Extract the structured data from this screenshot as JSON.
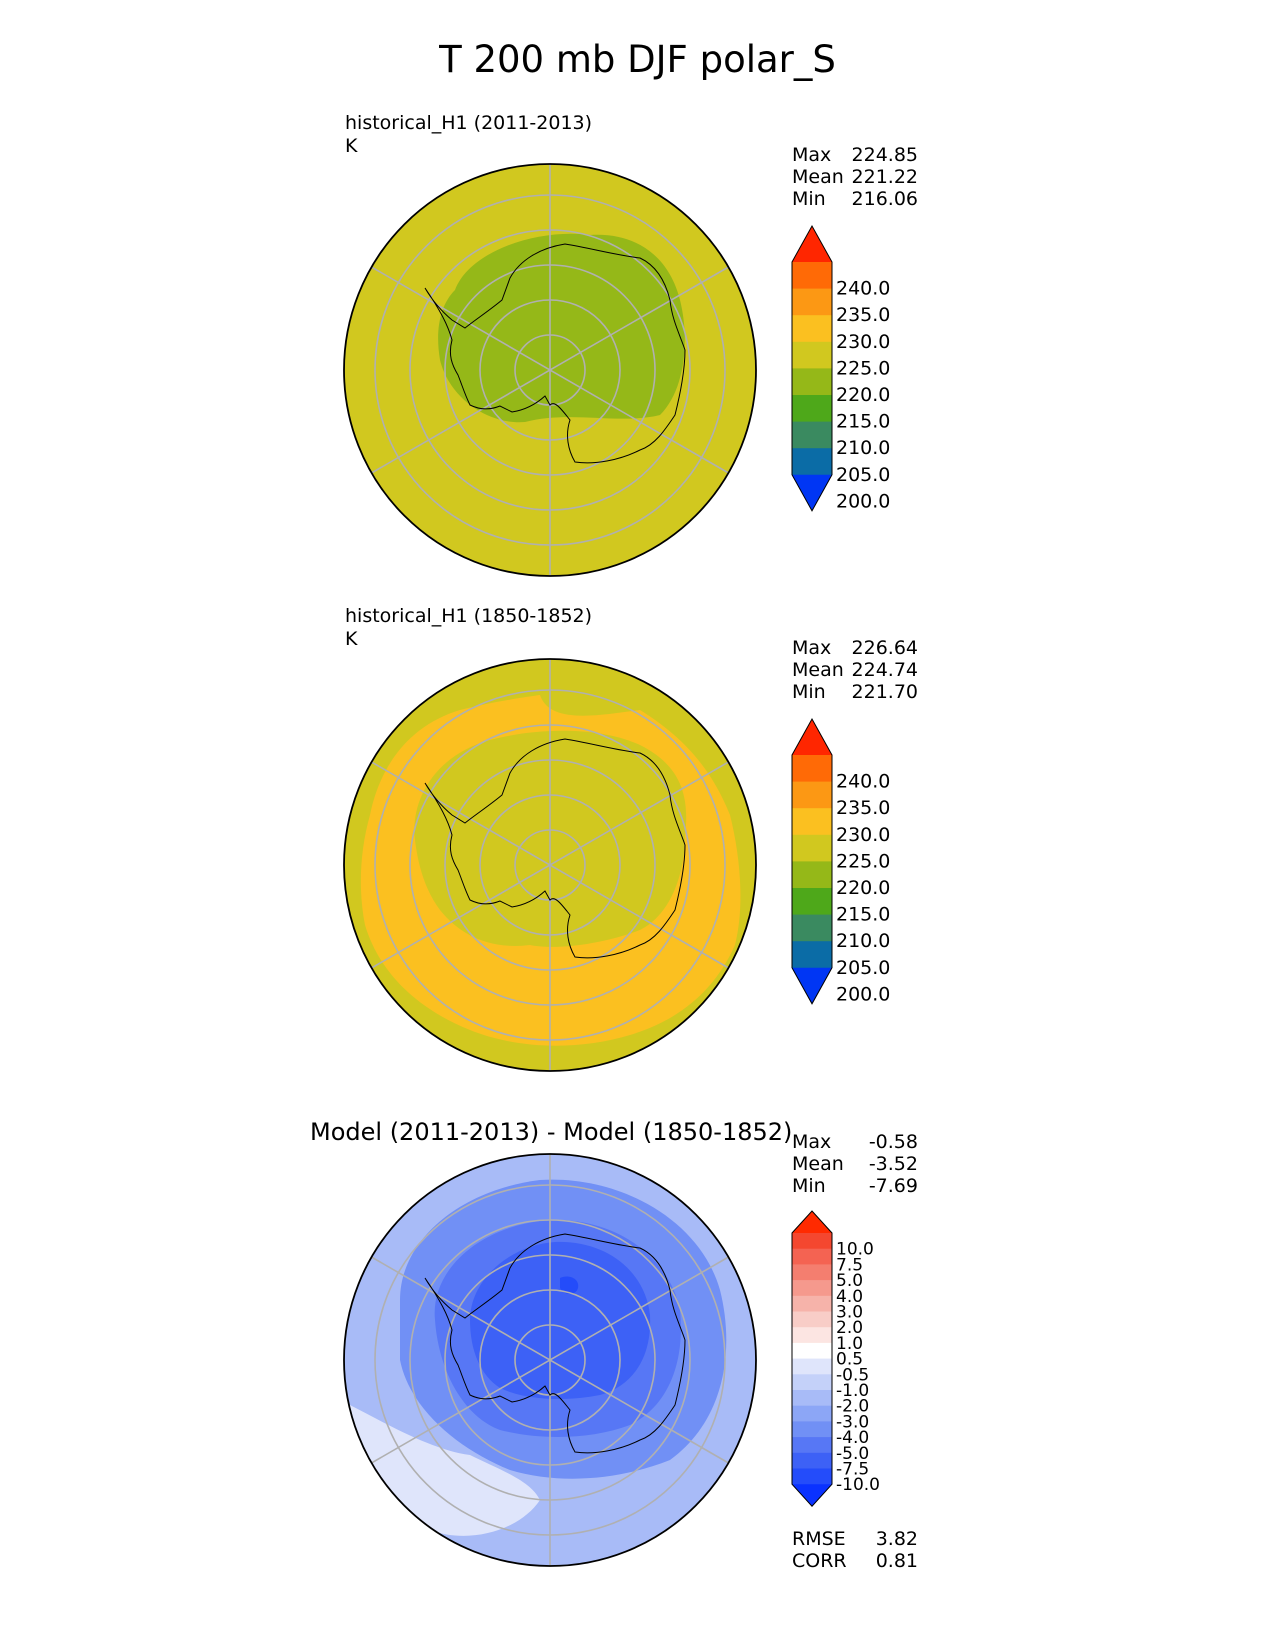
{
  "page": {
    "title": "T 200 mb DJF polar_S"
  },
  "panels": [
    {
      "title": "historical_H1 (2011-2013)",
      "units": "K",
      "stats": [
        {
          "label": "Max",
          "value": "224.85"
        },
        {
          "label": "Mean",
          "value": "221.22"
        },
        {
          "label": "Min",
          "value": "216.06"
        }
      ]
    },
    {
      "title": "historical_H1 (1850-1852)",
      "units": "K",
      "stats": [
        {
          "label": "Max",
          "value": "226.64"
        },
        {
          "label": "Mean",
          "value": "224.74"
        },
        {
          "label": "Min",
          "value": "221.70"
        }
      ]
    },
    {
      "title": "Model (2011-2013) - Model (1850-1852)",
      "stats": [
        {
          "label": "Max",
          "value": "-0.58"
        },
        {
          "label": "Mean",
          "value": "-3.52"
        },
        {
          "label": "Min",
          "value": "-7.69"
        }
      ],
      "errors": [
        {
          "label": "RMSE",
          "value": "3.82"
        },
        {
          "label": "CORR",
          "value": "0.81"
        }
      ]
    }
  ],
  "chart_data": [
    {
      "type": "heatmap",
      "projection": "south polar stereographic",
      "title": "historical_H1 (2011-2013)",
      "units": "K",
      "colorbar": {
        "ticks": [
          "240.0",
          "235.0",
          "230.0",
          "225.0",
          "220.0",
          "215.0",
          "210.0",
          "205.0",
          "200.0"
        ],
        "levels": [
          200,
          205,
          210,
          215,
          220,
          225,
          230,
          235,
          240
        ],
        "extend": "both",
        "colors": [
          "#0036f4",
          "#0b6ca6",
          "#3a8a60",
          "#4ea81a",
          "#95b818",
          "#d1c81f",
          "#fbc020",
          "#fc9814",
          "#ff6a06",
          "#ff2600"
        ]
      },
      "fields": [
        {
          "range": "220-225",
          "color": "#d1c81f",
          "region": "outer ring"
        },
        {
          "range": "215-220",
          "color": "#95b818",
          "region": "East Antarctic interior"
        }
      ],
      "stats": {
        "max": 224.85,
        "mean": 221.22,
        "min": 216.06
      }
    },
    {
      "type": "heatmap",
      "projection": "south polar stereographic",
      "title": "historical_H1 (1850-1852)",
      "units": "K",
      "colorbar": {
        "ticks": [
          "240.0",
          "235.0",
          "230.0",
          "225.0",
          "220.0",
          "215.0",
          "210.0",
          "205.0",
          "200.0"
        ],
        "levels": [
          200,
          205,
          210,
          215,
          220,
          225,
          230,
          235,
          240
        ],
        "extend": "both",
        "colors": [
          "#0036f4",
          "#0b6ca6",
          "#3a8a60",
          "#4ea81a",
          "#95b818",
          "#d1c81f",
          "#fbc020",
          "#fc9814",
          "#ff6a06",
          "#ff2600"
        ]
      },
      "fields": [
        {
          "range": "220-225",
          "color": "#d1c81f",
          "region": "continent and outer rim"
        },
        {
          "range": "225-230",
          "color": "#fbc020",
          "region": "mid-latitude ring"
        }
      ],
      "stats": {
        "max": 226.64,
        "mean": 224.74,
        "min": 221.7
      }
    },
    {
      "type": "heatmap",
      "projection": "south polar stereographic",
      "title": "Model (2011-2013) - Model (1850-1852)",
      "colorbar": {
        "ticks": [
          "10.0",
          "7.5",
          "5.0",
          "4.0",
          "3.0",
          "2.0",
          "1.0",
          "0.5",
          "-0.5",
          "-1.0",
          "-2.0",
          "-3.0",
          "-4.0",
          "-5.0",
          "-7.5",
          "-10.0"
        ],
        "levels": [
          -10,
          -7.5,
          -5,
          -4,
          -3,
          -2,
          -1,
          -0.5,
          0.5,
          1,
          2,
          3,
          4,
          5,
          7.5,
          10
        ],
        "extend": "both",
        "colors": [
          "#0a32ff",
          "#244cfa",
          "#3d61f6",
          "#5777f5",
          "#7190f5",
          "#8ca6f6",
          "#a8bbf7",
          "#c4d1f9",
          "#dfe5fb",
          "#ffffff",
          "#fce5e2",
          "#f8cdc7",
          "#f6b3aa",
          "#f5998d",
          "#f47e6f",
          "#f46352",
          "#f4472f",
          "#ff2a00"
        ]
      },
      "fields": [
        {
          "range": "-5 to -4",
          "color": "#3d61f6",
          "region": "continent interior"
        },
        {
          "range": "-3 to -2",
          "color": "#7190f5",
          "region": "surrounding ocean"
        },
        {
          "range": "-2 to -1",
          "color": "#a8bbf7",
          "region": "outer ring"
        },
        {
          "range": "-1 to -0.5",
          "color": "#dfe5fb",
          "region": "lower-left patch"
        }
      ],
      "stats": {
        "max": -0.58,
        "mean": -3.52,
        "min": -7.69
      },
      "rmse": 3.82,
      "corr": 0.81
    }
  ]
}
